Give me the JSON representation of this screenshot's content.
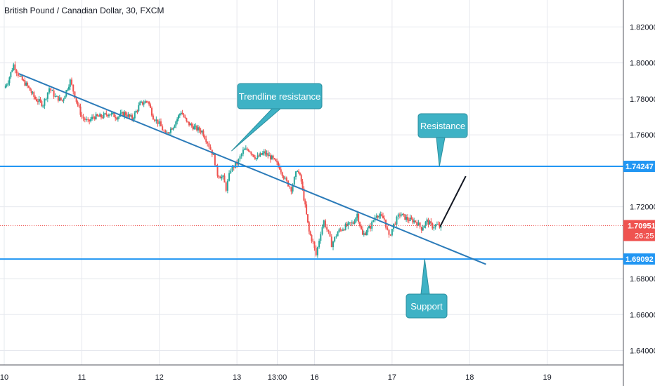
{
  "chart_data": {
    "type": "candlestick",
    "title": "British Pound / Canadian Dollar, 30, FXCM",
    "y_ticks": [
      {
        "value": 1.82,
        "label": "1.82000"
      },
      {
        "value": 1.8,
        "label": "1.80000"
      },
      {
        "value": 1.78,
        "label": "1.78000"
      },
      {
        "value": 1.76,
        "label": "1.76000"
      },
      {
        "value": 1.72,
        "label": "1.72000"
      },
      {
        "value": 1.68,
        "label": "1.68000"
      },
      {
        "value": 1.66,
        "label": "1.66000"
      },
      {
        "value": 1.64,
        "label": "1.64000"
      }
    ],
    "ylim": [
      1.632,
      1.835
    ],
    "xlim": [
      0,
      8.0
    ],
    "x_ticks": [
      {
        "x": 0.0,
        "label": "10"
      },
      {
        "x": 1.0,
        "label": "11"
      },
      {
        "x": 2.0,
        "label": "12"
      },
      {
        "x": 3.0,
        "label": "13"
      },
      {
        "x": 3.52,
        "label": "13:00"
      },
      {
        "x": 4.0,
        "label": "16"
      },
      {
        "x": 5.0,
        "label": "17"
      },
      {
        "x": 6.0,
        "label": "18"
      },
      {
        "x": 7.0,
        "label": "19"
      }
    ],
    "price_points": [
      [
        0.0,
        1.786
      ],
      [
        0.05,
        1.79
      ],
      [
        0.12,
        1.799
      ],
      [
        0.2,
        1.792
      ],
      [
        0.3,
        1.787
      ],
      [
        0.4,
        1.78
      ],
      [
        0.5,
        1.777
      ],
      [
        0.58,
        1.786
      ],
      [
        0.66,
        1.781
      ],
      [
        0.75,
        1.779
      ],
      [
        0.85,
        1.79
      ],
      [
        0.93,
        1.779
      ],
      [
        1.0,
        1.77
      ],
      [
        1.08,
        1.767
      ],
      [
        1.15,
        1.77
      ],
      [
        1.25,
        1.77
      ],
      [
        1.35,
        1.772
      ],
      [
        1.45,
        1.77
      ],
      [
        1.55,
        1.772
      ],
      [
        1.65,
        1.769
      ],
      [
        1.75,
        1.777
      ],
      [
        1.85,
        1.779
      ],
      [
        1.92,
        1.77
      ],
      [
        2.0,
        1.766
      ],
      [
        2.08,
        1.76
      ],
      [
        2.18,
        1.765
      ],
      [
        2.28,
        1.773
      ],
      [
        2.35,
        1.767
      ],
      [
        2.45,
        1.764
      ],
      [
        2.55,
        1.762
      ],
      [
        2.62,
        1.756
      ],
      [
        2.7,
        1.748
      ],
      [
        2.75,
        1.738
      ],
      [
        2.82,
        1.736
      ],
      [
        2.86,
        1.73
      ],
      [
        2.92,
        1.741
      ],
      [
        3.0,
        1.744
      ],
      [
        3.08,
        1.751
      ],
      [
        3.15,
        1.752
      ],
      [
        3.25,
        1.747
      ],
      [
        3.35,
        1.75
      ],
      [
        3.45,
        1.747
      ],
      [
        3.55,
        1.742
      ],
      [
        3.62,
        1.735
      ],
      [
        3.7,
        1.73
      ],
      [
        3.78,
        1.741
      ],
      [
        3.83,
        1.734
      ],
      [
        3.88,
        1.72
      ],
      [
        3.93,
        1.706
      ],
      [
        3.98,
        1.7
      ],
      [
        4.02,
        1.693
      ],
      [
        4.08,
        1.706
      ],
      [
        4.12,
        1.712
      ],
      [
        4.18,
        1.705
      ],
      [
        4.22,
        1.699
      ],
      [
        4.3,
        1.706
      ],
      [
        4.4,
        1.709
      ],
      [
        4.5,
        1.711
      ],
      [
        4.55,
        1.716
      ],
      [
        4.62,
        1.704
      ],
      [
        4.72,
        1.709
      ],
      [
        4.8,
        1.716
      ],
      [
        4.9,
        1.713
      ],
      [
        4.96,
        1.703
      ],
      [
        5.02,
        1.71
      ],
      [
        5.1,
        1.716
      ],
      [
        5.2,
        1.713
      ],
      [
        5.3,
        1.712
      ],
      [
        5.38,
        1.708
      ],
      [
        5.45,
        1.712
      ],
      [
        5.52,
        1.709
      ],
      [
        5.58,
        1.71
      ],
      [
        5.63,
        1.708
      ]
    ],
    "horizontal_lines": [
      {
        "name": "Resistance",
        "value": 1.74247,
        "label": "1.74247",
        "color": "#2196f3"
      },
      {
        "name": "Support",
        "value": 1.69092,
        "label": "1.69092",
        "color": "#2196f3"
      }
    ],
    "current_price": {
      "value": 1.70951,
      "label": "1.70951",
      "countdown": "26:25",
      "color": "#ef5350"
    },
    "trendline": {
      "x1": 0.19,
      "y1": 1.794,
      "x2": 6.21,
      "y2": 1.688,
      "color": "#2b7bb9"
    },
    "arrow": {
      "x1": 5.62,
      "y1": 1.709,
      "x2": 5.95,
      "y2": 1.737,
      "color": "#131722"
    },
    "callouts": [
      {
        "text": "Trendline resistance",
        "anchor": [
          2.93,
          1.751
        ],
        "color": "#3eb2c5"
      },
      {
        "text": "Resistance",
        "anchor": [
          5.61,
          1.74247
        ],
        "color": "#3eb2c5"
      },
      {
        "text": "Support",
        "anchor": [
          5.42,
          1.69092
        ],
        "color": "#3eb2c5"
      }
    ],
    "colors": {
      "up": "#26a69a",
      "down": "#ef5350",
      "grid": "#e6e8ee",
      "axis_text": "#131722"
    },
    "grid": true
  }
}
